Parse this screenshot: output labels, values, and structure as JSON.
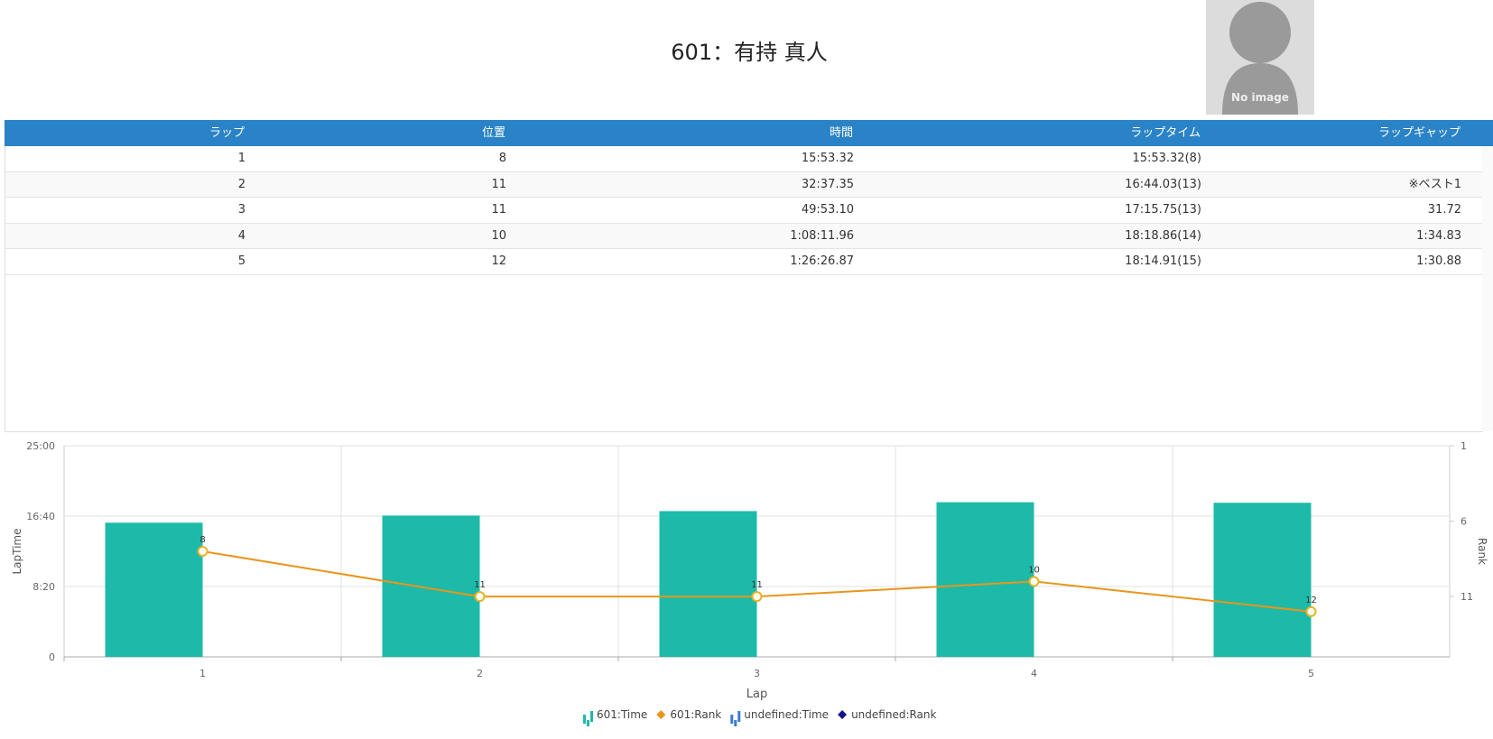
{
  "header": {
    "title": "601：有持 真人",
    "image_text": "No image"
  },
  "table": {
    "columns": [
      "ラップ",
      "位置",
      "時間",
      "ラップタイム",
      "ラップギャップ"
    ],
    "rows": [
      [
        "1",
        "8",
        "15:53.32",
        "15:53.32(8)",
        null
      ],
      [
        "2",
        "11",
        "32:37.35",
        "16:44.03(13)",
        "※ベスト1"
      ],
      [
        "3",
        "11",
        "49:53.10",
        "17:15.75(13)",
        "31.72"
      ],
      [
        "4",
        "10",
        "1:08:11.96",
        "18:18.86(14)",
        "1:34.83"
      ],
      [
        "5",
        "12",
        "1:26:26.87",
        "18:14.91(15)",
        "1:30.88"
      ]
    ]
  },
  "chart_data": {
    "type": "bar_line",
    "xlabel": "Lap",
    "ylabel": "LapTime",
    "y2label": "Rank",
    "categories": [
      "1",
      "2",
      "3",
      "4",
      "5"
    ],
    "series": [
      {
        "name": "601:Time",
        "color": "#1ebaa9",
        "kind": "bar",
        "values": [
          953.32,
          1004.03,
          1035.75,
          1098.86,
          1094.91
        ]
      },
      {
        "name": "601:Rank",
        "color": "#e8961a",
        "kind": "line",
        "axis": "y2",
        "values": [
          8,
          11,
          11,
          10,
          12
        ]
      },
      {
        "name": "undefined:Time",
        "color": "#3a7bd5",
        "kind": "bar",
        "values": [
          null,
          null,
          null,
          null,
          null
        ]
      },
      {
        "name": "undefined:Rank",
        "color": "#10108a",
        "kind": "line",
        "axis": "y2",
        "values": [
          null,
          null,
          null,
          null,
          null
        ]
      }
    ],
    "ylim": [
      0,
      1500
    ],
    "yticks": [
      0,
      {
        "value": 500,
        "label": "8:20"
      },
      {
        "value": 1000,
        "label": "16:40"
      },
      {
        "value": 1500,
        "label": "25:00"
      }
    ],
    "y2lim": [
      15,
      1
    ],
    "y2ticks": [
      1,
      6,
      11
    ],
    "grid": true,
    "legend": "bottom"
  }
}
